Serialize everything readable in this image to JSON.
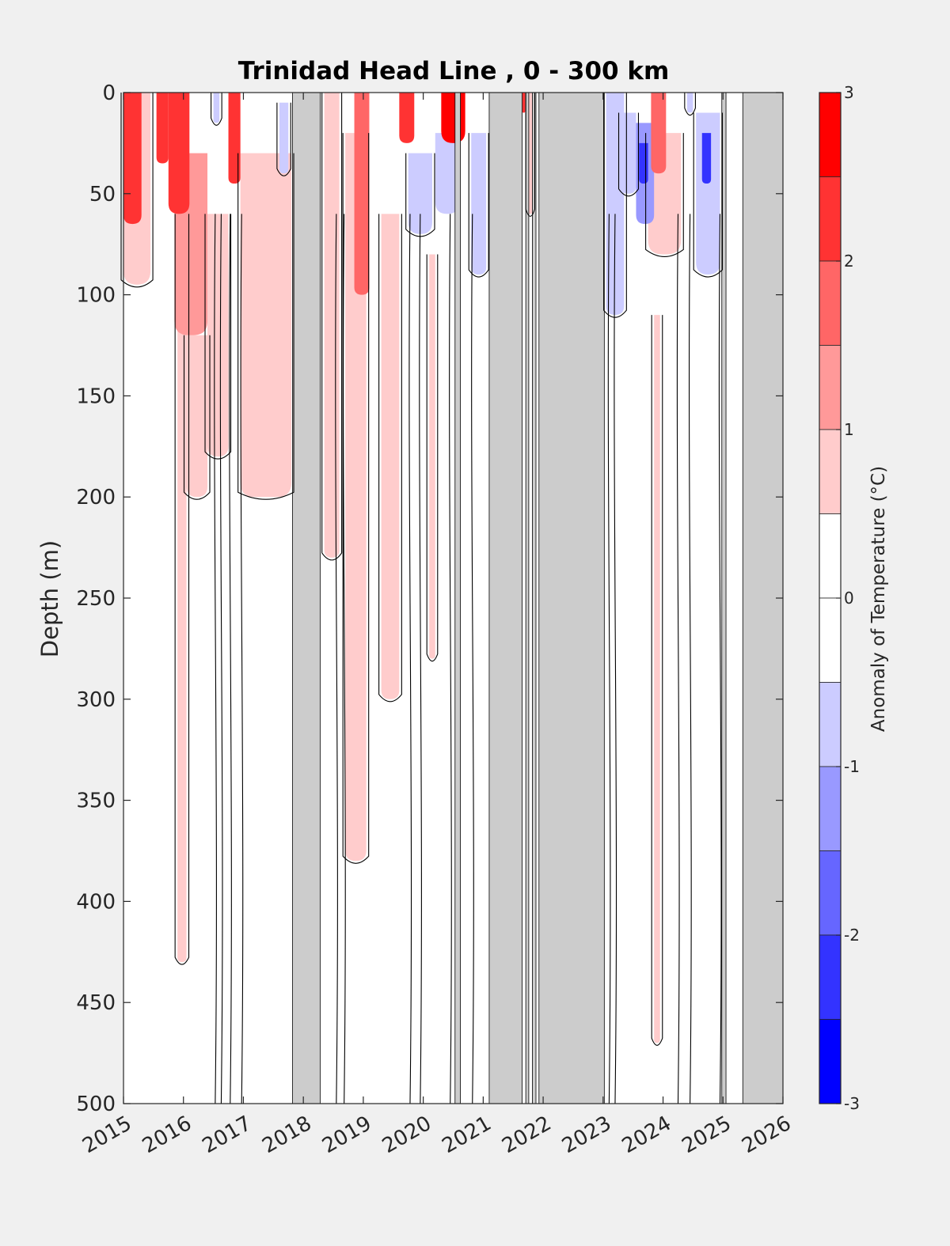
{
  "chart_data": {
    "type": "heatmap",
    "subtype": "filled-contour (time-depth section)",
    "title": "Trinidad Head Line , 0 - 300 km",
    "xlabel": "",
    "ylabel": "Depth (m)",
    "xlim": [
      2015,
      2026
    ],
    "ylim": [
      0,
      500
    ],
    "y_reversed": true,
    "x_ticks": [
      "2015",
      "2016",
      "2017",
      "2018",
      "2019",
      "2020",
      "2021",
      "2022",
      "2023",
      "2024",
      "2025",
      "2026"
    ],
    "y_ticks": [
      "0",
      "50",
      "100",
      "150",
      "200",
      "250",
      "300",
      "350",
      "400",
      "450",
      "500"
    ],
    "colorbar": {
      "label": "Anomaly of Temperature (°C)",
      "ticks": [
        "3",
        "2",
        "1",
        "0",
        "-1",
        "-2",
        "-3"
      ],
      "range": [
        -3,
        3
      ],
      "levels": [
        {
          "from": 2.5,
          "to": 3.0,
          "color": "#ff0000"
        },
        {
          "from": 2.0,
          "to": 2.5,
          "color": "#ff3333"
        },
        {
          "from": 1.5,
          "to": 2.0,
          "color": "#ff6666"
        },
        {
          "from": 1.0,
          "to": 1.5,
          "color": "#ff9999"
        },
        {
          "from": 0.5,
          "to": 1.0,
          "color": "#ffcccc"
        },
        {
          "from": 0.0,
          "to": 0.5,
          "color": "#ffffff"
        },
        {
          "from": -0.5,
          "to": 0.0,
          "color": "#ffffff"
        },
        {
          "from": -1.0,
          "to": -0.5,
          "color": "#ccccff"
        },
        {
          "from": -1.5,
          "to": -1.0,
          "color": "#9999ff"
        },
        {
          "from": -2.0,
          "to": -1.5,
          "color": "#6666ff"
        },
        {
          "from": -2.5,
          "to": -2.0,
          "color": "#3333ff"
        },
        {
          "from": -3.0,
          "to": -2.5,
          "color": "#0000ff"
        }
      ]
    },
    "no_data_intervals": [
      [
        2017.82,
        2018.28
      ],
      [
        2020.53,
        2020.62
      ],
      [
        2021.1,
        2021.65
      ],
      [
        2021.71,
        2021.76
      ],
      [
        2021.82,
        2021.88
      ],
      [
        2021.93,
        2023.02
      ],
      [
        2024.98,
        2025.05
      ],
      [
        2025.33,
        2026.0
      ]
    ],
    "anomaly_patches": [
      {
        "x": [
          2015.0,
          2015.3
        ],
        "depth": [
          0,
          65
        ],
        "value": 2.2
      },
      {
        "x": [
          2015.0,
          2015.45
        ],
        "depth": [
          0,
          95
        ],
        "value": 0.8
      },
      {
        "x": [
          2015.55,
          2015.75
        ],
        "depth": [
          0,
          35
        ],
        "value": 2.0
      },
      {
        "x": [
          2015.75,
          2016.1
        ],
        "depth": [
          0,
          60
        ],
        "value": 2.2
      },
      {
        "x": [
          2015.85,
          2016.4
        ],
        "depth": [
          30,
          120
        ],
        "value": 1.3
      },
      {
        "x": [
          2015.9,
          2016.05
        ],
        "depth": [
          60,
          430
        ],
        "value": 0.8
      },
      {
        "x": [
          2016.05,
          2016.4
        ],
        "depth": [
          120,
          200
        ],
        "value": 0.8
      },
      {
        "x": [
          2016.4,
          2016.75
        ],
        "depth": [
          60,
          180
        ],
        "value": 0.8
      },
      {
        "x": [
          2016.75,
          2016.95
        ],
        "depth": [
          0,
          45
        ],
        "value": 2.4
      },
      {
        "x": [
          2016.95,
          2017.8
        ],
        "depth": [
          30,
          200
        ],
        "value": 0.8
      },
      {
        "x": [
          2016.5,
          2016.6
        ],
        "depth": [
          0,
          15
        ],
        "value": -0.8
      },
      {
        "x": [
          2017.6,
          2017.75
        ],
        "depth": [
          5,
          40
        ],
        "value": -0.8
      },
      {
        "x": [
          2018.35,
          2018.6
        ],
        "depth": [
          0,
          230
        ],
        "value": 0.8
      },
      {
        "x": [
          2018.7,
          2019.05
        ],
        "depth": [
          20,
          380
        ],
        "value": 0.8
      },
      {
        "x": [
          2018.85,
          2019.1
        ],
        "depth": [
          0,
          100
        ],
        "value": 1.5
      },
      {
        "x": [
          2019.3,
          2019.6
        ],
        "depth": [
          60,
          300
        ],
        "value": 0.8
      },
      {
        "x": [
          2019.6,
          2019.85
        ],
        "depth": [
          0,
          25
        ],
        "value": 2.2
      },
      {
        "x": [
          2019.75,
          2020.15
        ],
        "depth": [
          30,
          70
        ],
        "value": -0.9
      },
      {
        "x": [
          2020.1,
          2020.2
        ],
        "depth": [
          80,
          280
        ],
        "value": 0.8
      },
      {
        "x": [
          2020.3,
          2020.7
        ],
        "depth": [
          0,
          25
        ],
        "value": 2.6
      },
      {
        "x": [
          2020.2,
          2020.6
        ],
        "depth": [
          20,
          60
        ],
        "value": -0.7
      },
      {
        "x": [
          2020.8,
          2021.05
        ],
        "depth": [
          20,
          90
        ],
        "value": -0.8
      },
      {
        "x": [
          2021.65,
          2021.7
        ],
        "depth": [
          0,
          10
        ],
        "value": 2.2
      },
      {
        "x": [
          2021.75,
          2021.82
        ],
        "depth": [
          0,
          60
        ],
        "value": 0.9
      },
      {
        "x": [
          2023.05,
          2023.35
        ],
        "depth": [
          0,
          110
        ],
        "value": -0.8
      },
      {
        "x": [
          2023.3,
          2023.55
        ],
        "depth": [
          10,
          50
        ],
        "value": -0.9
      },
      {
        "x": [
          2023.6,
          2023.75
        ],
        "depth": [
          25,
          45
        ],
        "value": -2.3
      },
      {
        "x": [
          2023.55,
          2023.85
        ],
        "depth": [
          15,
          65
        ],
        "value": -1.3
      },
      {
        "x": [
          2023.8,
          2024.05
        ],
        "depth": [
          0,
          40
        ],
        "value": 1.7
      },
      {
        "x": [
          2023.75,
          2024.3
        ],
        "depth": [
          20,
          80
        ],
        "value": 0.8
      },
      {
        "x": [
          2023.85,
          2023.95
        ],
        "depth": [
          110,
          470
        ],
        "value": 0.8
      },
      {
        "x": [
          2024.55,
          2024.95
        ],
        "depth": [
          10,
          90
        ],
        "value": -1.0
      },
      {
        "x": [
          2024.65,
          2024.8
        ],
        "depth": [
          20,
          45
        ],
        "value": -2.2
      },
      {
        "x": [
          2024.4,
          2024.5
        ],
        "depth": [
          0,
          10
        ],
        "value": -0.8
      }
    ]
  }
}
